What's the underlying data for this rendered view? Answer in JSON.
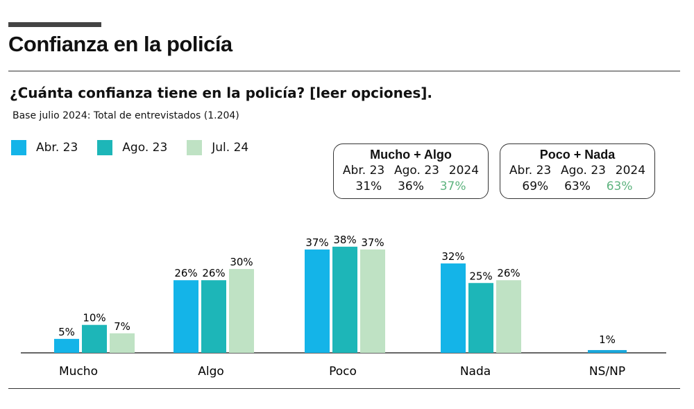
{
  "title": "Confianza en la policía",
  "question": "¿Cuánta confianza tiene en la policía? [leer opciones].",
  "base": "Base julio 2024: Total de entrevistados (1.204)",
  "summary": [
    {
      "heading": "Mucho + Algo",
      "periods": [
        "Abr. 23",
        "Ago. 23",
        "2024"
      ],
      "values": [
        "31%",
        "36%",
        "37%"
      ]
    },
    {
      "heading": "Poco + Nada",
      "periods": [
        "Abr. 23",
        "Ago. 23",
        "2024"
      ],
      "values": [
        "69%",
        "63%",
        "63%"
      ]
    }
  ],
  "colors": {
    "highlight": "#5db37e"
  },
  "chart_data": {
    "type": "bar",
    "categories": [
      "Mucho",
      "Algo",
      "Poco",
      "Nada",
      "NS/NP"
    ],
    "series": [
      {
        "name": "Abr. 23",
        "color": "#14b4e8",
        "values": [
          5,
          26,
          37,
          32,
          null
        ]
      },
      {
        "name": "Ago. 23",
        "color": "#1db6b8",
        "values": [
          10,
          26,
          38,
          25,
          null
        ]
      },
      {
        "name": "Jul. 24",
        "color": "#bfe2c4",
        "values": [
          7,
          30,
          37,
          26,
          null
        ]
      }
    ],
    "single_bar": {
      "category": "NS/NP",
      "value": 1,
      "label": "1%",
      "color": "#1aa8dc"
    },
    "value_suffix": "%",
    "legend": "top-left",
    "grid": false
  }
}
